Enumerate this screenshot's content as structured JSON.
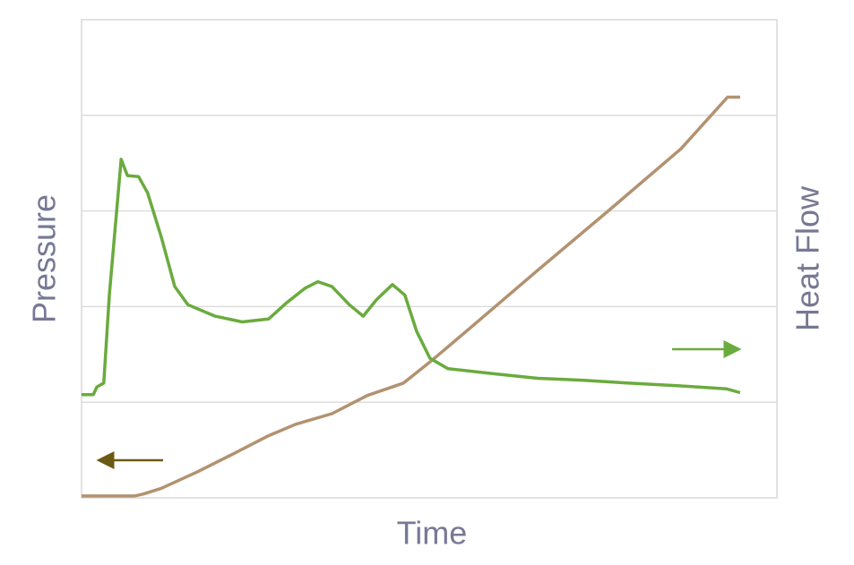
{
  "chart_data": {
    "type": "line",
    "xlabel": "Time",
    "ylabel": "Pressure",
    "y2label": "Heat Flow",
    "xlim": [
      0,
      10
    ],
    "ylim": [
      0,
      5
    ],
    "y2lim": [
      0,
      5
    ],
    "yticks": [
      1,
      2,
      3,
      4
    ],
    "grid": true,
    "series": [
      {
        "color": "#b39270",
        "x": [
          0,
          0.76,
          0.89,
          1.15,
          1.66,
          2.18,
          2.69,
          3.08,
          3.6,
          4.11,
          4.63,
          5.01,
          5.53,
          6.56,
          7.59,
          8.62,
          9.29,
          9.47
        ],
        "values": [
          0.02,
          0.02,
          0.04,
          0.1,
          0.27,
          0.46,
          0.65,
          0.77,
          0.88,
          1.07,
          1.2,
          1.42,
          1.74,
          2.38,
          3.01,
          3.65,
          4.19,
          4.19
        ]
      },
      {
        "color": "#6aab3e",
        "axis": "y2",
        "x": [
          0,
          0.17,
          0.22,
          0.32,
          0.4,
          0.57,
          0.66,
          0.82,
          0.95,
          1.15,
          1.34,
          1.53,
          1.92,
          2.31,
          2.69,
          2.95,
          3.21,
          3.4,
          3.6,
          3.85,
          4.05,
          4.24,
          4.47,
          4.65,
          4.82,
          5.01,
          5.27,
          5.91,
          6.56,
          7.2,
          7.85,
          8.62,
          9.27,
          9.47
        ],
        "values": [
          1.08,
          1.08,
          1.16,
          1.2,
          2.12,
          3.54,
          3.37,
          3.36,
          3.19,
          2.72,
          2.21,
          2.02,
          1.9,
          1.84,
          1.87,
          2.04,
          2.19,
          2.26,
          2.21,
          2.02,
          1.9,
          2.07,
          2.23,
          2.12,
          1.74,
          1.46,
          1.35,
          1.3,
          1.25,
          1.23,
          1.2,
          1.17,
          1.14,
          1.1
        ]
      }
    ]
  }
}
